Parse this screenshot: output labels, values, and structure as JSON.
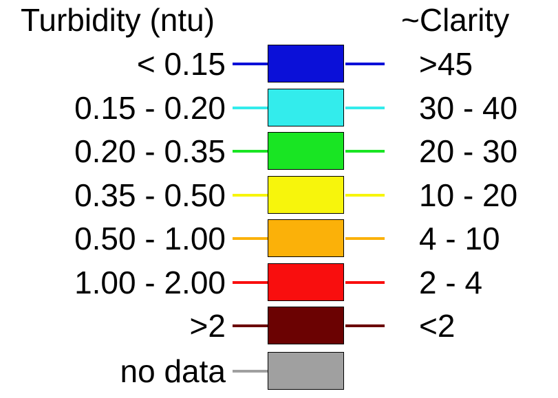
{
  "legend": {
    "left_title": "Turbidity (ntu)",
    "right_title": "~Clarity",
    "rows": [
      {
        "turbidity": "< 0.15",
        "clarity": ">45",
        "color": "#0b10d8"
      },
      {
        "turbidity": "0.15 - 0.20",
        "clarity": "30 - 40",
        "color": "#33ecec"
      },
      {
        "turbidity": "0.20 - 0.35",
        "clarity": "20 - 30",
        "color": "#19e523"
      },
      {
        "turbidity": "0.35 - 0.50",
        "clarity": "10 - 20",
        "color": "#f7f50c"
      },
      {
        "turbidity": "0.50 - 1.00",
        "clarity": "4 - 10",
        "color": "#fbb109"
      },
      {
        "turbidity": "1.00 - 2.00",
        "clarity": "2 - 4",
        "color": "#f90e0e"
      },
      {
        "turbidity": ">2",
        "clarity": "<2",
        "color": "#6b0202"
      },
      {
        "turbidity": "no data",
        "clarity": "",
        "color": "#a0a0a0"
      }
    ]
  }
}
